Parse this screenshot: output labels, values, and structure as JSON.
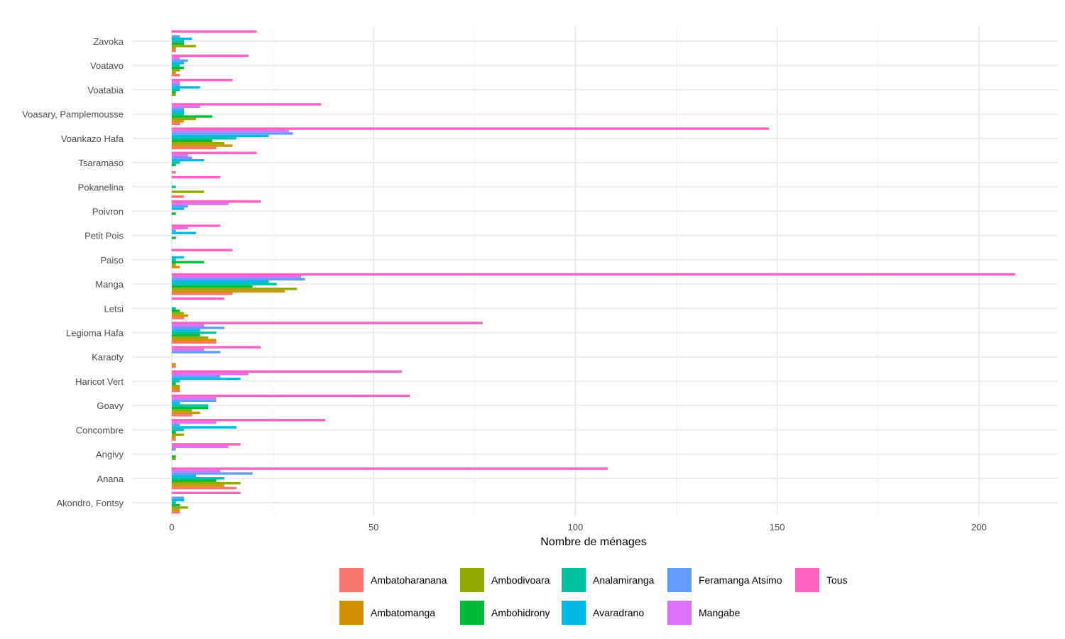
{
  "chart_data": {
    "type": "bar",
    "orientation": "horizontal",
    "title": "",
    "xlabel": "Nombre de ménages",
    "ylabel": "",
    "xlim": [
      -10,
      219
    ],
    "xticks": [
      0,
      50,
      100,
      150,
      200
    ],
    "grid": true,
    "legend_position": "bottom",
    "categories": [
      "Zavoka",
      "Voatavo",
      "Voatabia",
      "Voasary, Pamplemousse",
      "Voankazo Hafa",
      "Tsaramaso",
      "Pokanelina",
      "Poivron",
      "Petit Pois",
      "Paiso",
      "Manga",
      "Letsi",
      "Legioma Hafa",
      "Karaoty",
      "Haricot Vert",
      "Goavy",
      "Concombre",
      "Angivy",
      "Anana",
      "Akondro, Fontsy"
    ],
    "series": [
      {
        "name": "Ambatoharanana",
        "color": "#F8766D",
        "values": [
          1,
          2,
          0,
          2,
          11,
          1,
          3,
          0,
          0,
          0,
          15,
          3,
          11,
          1,
          2,
          5,
          1,
          0,
          16,
          2
        ]
      },
      {
        "name": "Ambatomanga",
        "color": "#D39200",
        "values": [
          1,
          1,
          0,
          3,
          15,
          0,
          0,
          0,
          0,
          2,
          28,
          4,
          11,
          1,
          2,
          7,
          1,
          0,
          13,
          2
        ]
      },
      {
        "name": "Ambodivoara",
        "color": "#93AA00",
        "values": [
          6,
          2,
          1,
          6,
          13,
          0,
          8,
          0,
          0,
          1,
          31,
          3,
          9,
          0,
          2,
          5,
          3,
          1,
          17,
          4
        ]
      },
      {
        "name": "Ambohidrony",
        "color": "#00BA38",
        "values": [
          3,
          3,
          1,
          10,
          10,
          1,
          0,
          1,
          1,
          8,
          20,
          2,
          7,
          0,
          1,
          9,
          1,
          1,
          11,
          2
        ]
      },
      {
        "name": "Analamiranga",
        "color": "#00C19F",
        "values": [
          3,
          2,
          2,
          3,
          16,
          2,
          1,
          0,
          0,
          1,
          26,
          1,
          11,
          0,
          2,
          9,
          3,
          0,
          13,
          1
        ]
      },
      {
        "name": "Avaradrano",
        "color": "#00B9E3",
        "values": [
          5,
          3,
          7,
          3,
          24,
          8,
          0,
          3,
          6,
          3,
          24,
          0,
          7,
          0,
          17,
          2,
          16,
          0,
          6,
          3
        ]
      },
      {
        "name": "Feramanga Atsimo",
        "color": "#619CFF",
        "values": [
          2,
          4,
          2,
          3,
          30,
          5,
          0,
          4,
          1,
          0,
          33,
          0,
          13,
          12,
          12,
          11,
          2,
          1,
          20,
          3
        ]
      },
      {
        "name": "Mangabe",
        "color": "#DB72FB",
        "values": [
          0,
          2,
          2,
          7,
          29,
          4,
          0,
          14,
          4,
          0,
          32,
          0,
          8,
          8,
          19,
          11,
          11,
          14,
          12,
          0
        ]
      },
      {
        "name": "Tous",
        "color": "#FF61C3",
        "values": [
          21,
          19,
          15,
          37,
          148,
          21,
          12,
          22,
          12,
          15,
          209,
          13,
          77,
          22,
          57,
          59,
          38,
          17,
          108,
          17
        ]
      }
    ]
  },
  "legend": {
    "items": [
      {
        "label": "Ambatoharanana",
        "color": "#F8766D"
      },
      {
        "label": "Ambatomanga",
        "color": "#D39200"
      },
      {
        "label": "Ambodivoara",
        "color": "#93AA00"
      },
      {
        "label": "Ambohidrony",
        "color": "#00BA38"
      },
      {
        "label": "Analamiranga",
        "color": "#00C19F"
      },
      {
        "label": "Avaradrano",
        "color": "#00B9E3"
      },
      {
        "label": "Feramanga Atsimo",
        "color": "#619CFF"
      },
      {
        "label": "Mangabe",
        "color": "#DB72FB"
      },
      {
        "label": "Tous",
        "color": "#FF61C3"
      }
    ]
  }
}
